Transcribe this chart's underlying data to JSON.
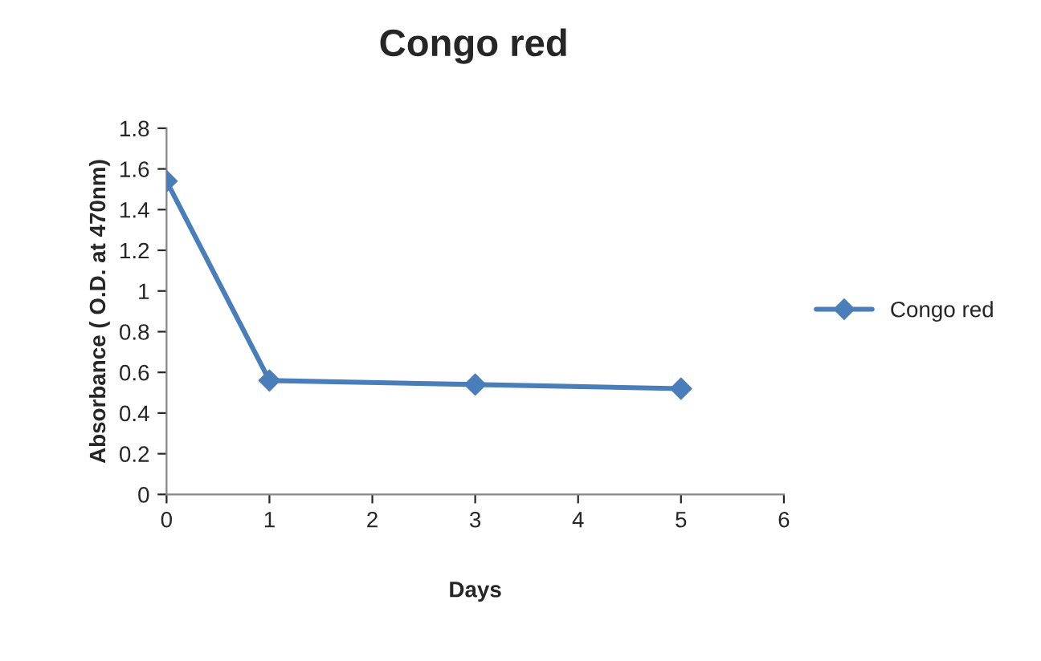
{
  "chart_data": {
    "type": "line",
    "title": "Congo red",
    "xlabel": "Days",
    "ylabel": "Absorbance ( O.D. at 470nm)",
    "x": [
      0,
      1,
      3,
      5
    ],
    "series": [
      {
        "name": "Congo red",
        "color": "#4a7ebb",
        "values": [
          1.54,
          0.56,
          0.54,
          0.52
        ]
      }
    ],
    "xlim": [
      0,
      6
    ],
    "xticks": [
      0,
      1,
      2,
      3,
      4,
      5,
      6
    ],
    "ylim": [
      0,
      1.8
    ],
    "yticks": [
      0,
      0.2,
      0.4,
      0.6,
      0.8,
      1,
      1.2,
      1.4,
      1.6,
      1.8
    ],
    "marker": "diamond",
    "line_style": "solid",
    "grid": false,
    "legend": "right"
  }
}
